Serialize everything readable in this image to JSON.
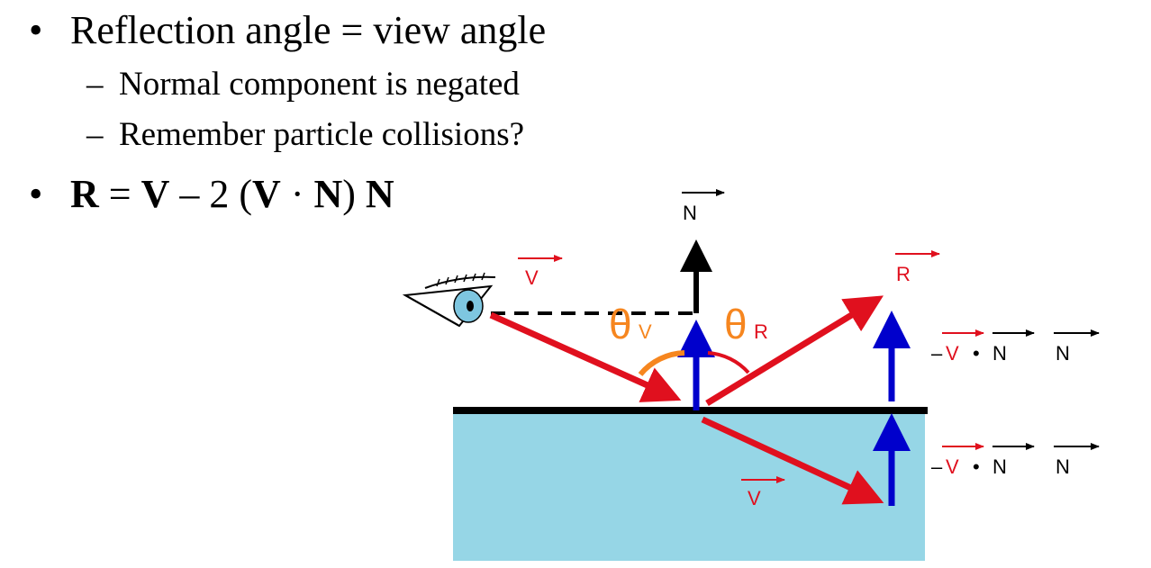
{
  "bullets": [
    {
      "text": "Reflection angle = view angle",
      "sub": [
        "Normal component is negated",
        "Remember particle collisions?"
      ]
    }
  ],
  "formula": {
    "r": "R",
    "eq": " = ",
    "v1": "V",
    "minus": " – 2 (",
    "v2": "V",
    "dot": " · ",
    "n1": "N",
    "close": ") ",
    "n2": "N"
  },
  "bullet_symbol": "•",
  "dash_symbol": "–",
  "diagram": {
    "normal_label": "N",
    "view_label": "V",
    "reflect_label": "R",
    "theta": "θ",
    "theta_v_sub": "V",
    "theta_r_sub": "R",
    "refract_label": "V",
    "dot_label_1": {
      "neg": "–",
      "v": "V",
      "bullet": "•",
      "n1": "N",
      "n2": "N"
    },
    "dot_label_2": {
      "neg": "–",
      "v": "V",
      "bullet": "•",
      "n1": "N",
      "n2": "N"
    }
  },
  "colors": {
    "red": "#e0101e",
    "blue": "#0000cc",
    "orange": "#f6861f",
    "water": "#96d6e6",
    "black": "#000000"
  }
}
